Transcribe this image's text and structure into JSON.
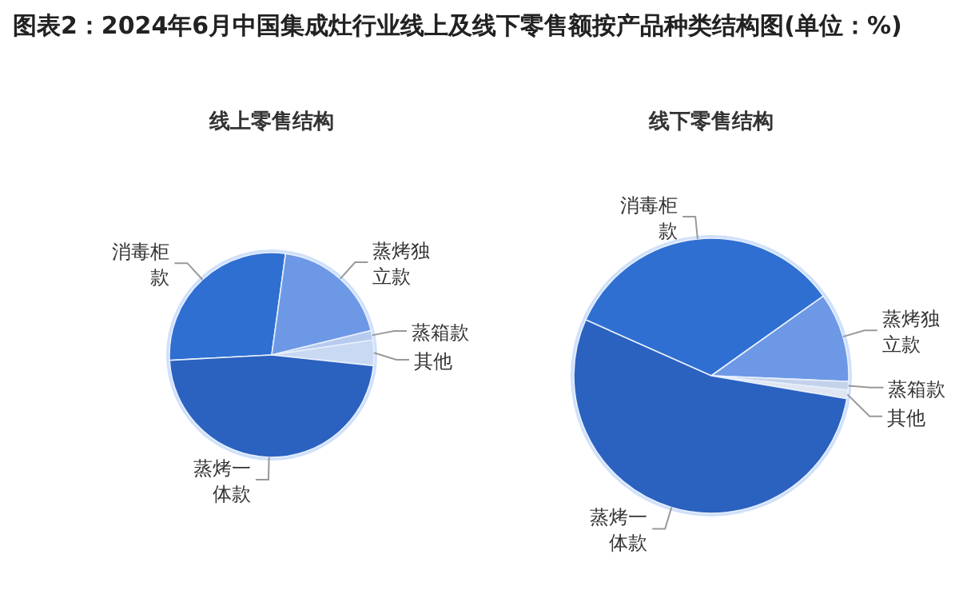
{
  "chart_data": [
    {
      "type": "pie",
      "title": "图表2：2024年6月中国集成灶行业线上及线下零售额按产品种类结构图(单位：%)",
      "subtitle": "线上零售结构",
      "categories": [
        "消毒柜款",
        "蒸烤独立款",
        "蒸箱款",
        "其他",
        "蒸烤一体款"
      ],
      "values": [
        28,
        19,
        1.5,
        4,
        47.5
      ],
      "colors": [
        "#2f6fd1",
        "#6d98e6",
        "#b7cbef",
        "#c9d8f3",
        "#2b61bf"
      ]
    },
    {
      "type": "pie",
      "subtitle": "线下零售结构",
      "categories": [
        "消毒柜款",
        "蒸烤独立款",
        "蒸箱款",
        "其他",
        "蒸烤一体款"
      ],
      "values": [
        33.5,
        10.5,
        1,
        1,
        54
      ],
      "colors": [
        "#2f6fd1",
        "#6d98e6",
        "#c3d2ea",
        "#dfe6f2",
        "#2b61bf"
      ]
    }
  ]
}
